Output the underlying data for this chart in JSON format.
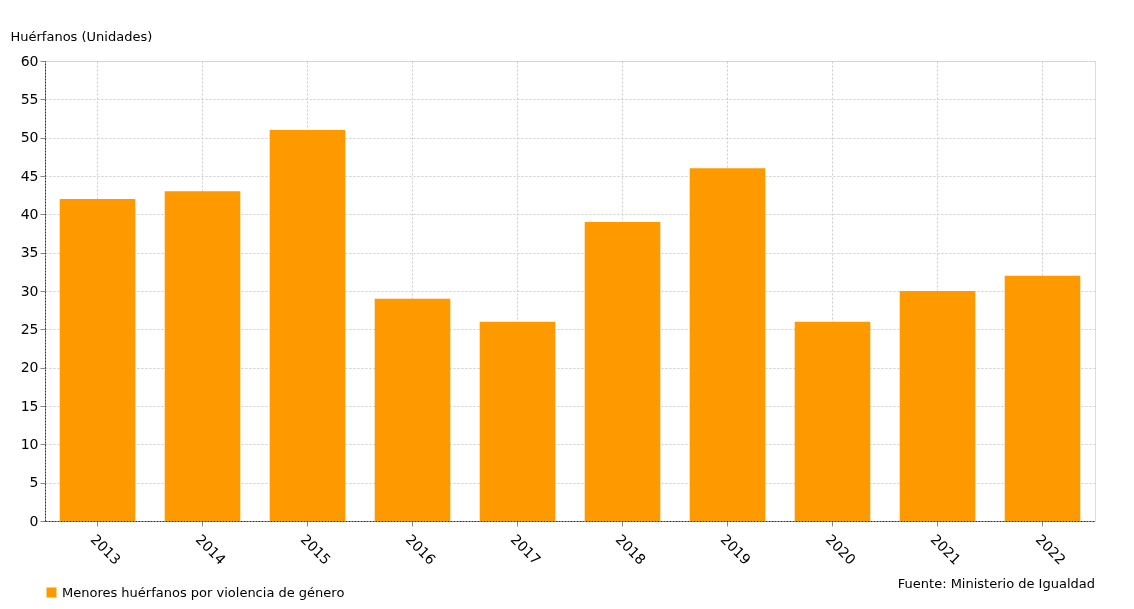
{
  "chart_data": {
    "type": "bar",
    "ylabel": "Huérfanos (Unidades)",
    "categories": [
      "2013",
      "2014",
      "2015",
      "2016",
      "2017",
      "2018",
      "2019",
      "2020",
      "2021",
      "2022"
    ],
    "series": [
      {
        "name": "Menores huérfanos por violencia de género",
        "color": "#ff9900",
        "values": [
          42,
          43,
          51,
          29,
          26,
          39,
          46,
          26,
          30,
          32
        ]
      }
    ],
    "ylim": [
      0,
      60
    ],
    "yticks": [
      0,
      5,
      10,
      15,
      20,
      25,
      30,
      35,
      40,
      45,
      50,
      55,
      60
    ],
    "grid": true,
    "legend": "bottom",
    "annotations": [
      "Fuente: Ministerio de Igualdad"
    ]
  }
}
